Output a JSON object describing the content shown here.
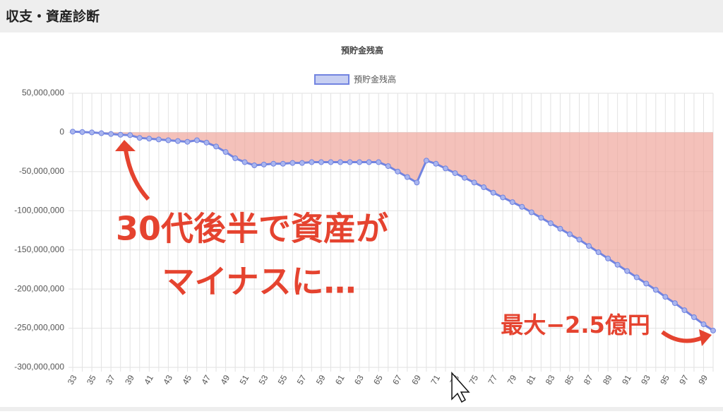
{
  "header": {
    "title": "収支・資産診断"
  },
  "chart_data": {
    "type": "line",
    "title": "預貯金残高",
    "x": [
      33,
      34,
      35,
      36,
      37,
      38,
      39,
      40,
      41,
      42,
      43,
      44,
      45,
      46,
      47,
      48,
      49,
      50,
      51,
      52,
      53,
      54,
      55,
      56,
      57,
      58,
      59,
      60,
      61,
      62,
      63,
      64,
      65,
      66,
      67,
      68,
      69,
      70,
      71,
      72,
      73,
      74,
      75,
      76,
      77,
      78,
      79,
      80,
      81,
      82,
      83,
      84,
      85,
      86,
      87,
      88,
      89,
      90,
      91,
      92,
      93,
      94,
      95,
      96,
      97,
      98,
      99,
      100
    ],
    "series": [
      {
        "name": "預貯金残高",
        "color": "#7284e0",
        "fill": "#f0a79d",
        "values": [
          1000000,
          500000,
          0,
          -1000000,
          -2000000,
          -3000000,
          -3500000,
          -7000000,
          -8000000,
          -9000000,
          -10000000,
          -11000000,
          -12000000,
          -10000000,
          -13000000,
          -18000000,
          -25000000,
          -33000000,
          -38000000,
          -42000000,
          -41000000,
          -40000000,
          -40000000,
          -39000000,
          -39000000,
          -38000000,
          -38000000,
          -38000000,
          -38000000,
          -38000000,
          -38000000,
          -38000000,
          -38000000,
          -43000000,
          -50000000,
          -57000000,
          -64000000,
          -36000000,
          -40000000,
          -46000000,
          -52000000,
          -58000000,
          -64000000,
          -70000000,
          -77000000,
          -83000000,
          -89000000,
          -95000000,
          -102000000,
          -109000000,
          -116000000,
          -123000000,
          -130000000,
          -137000000,
          -145000000,
          -153000000,
          -161000000,
          -169000000,
          -177000000,
          -185000000,
          -193000000,
          -201000000,
          -210000000,
          -218000000,
          -227000000,
          -236000000,
          -245000000,
          -253000000
        ]
      }
    ],
    "xlim": [
      33,
      100
    ],
    "xticks": [
      33,
      35,
      37,
      39,
      41,
      43,
      45,
      47,
      49,
      51,
      53,
      55,
      57,
      59,
      61,
      63,
      65,
      67,
      69,
      71,
      73,
      75,
      77,
      79,
      81,
      83,
      85,
      87,
      89,
      91,
      93,
      95,
      97,
      99
    ],
    "ylim": [
      -300000000,
      50000000
    ],
    "yticks": [
      {
        "value": 50000000,
        "label": "50,000,000"
      },
      0,
      {
        "value": -50000000,
        "label": "-50,000,000"
      },
      {
        "value": -100000000,
        "label": "-100,000,000"
      },
      {
        "value": -150000000,
        "label": "-150,000,000"
      },
      {
        "value": -200000000,
        "label": "-200,000,000"
      },
      {
        "value": -250000000,
        "label": "-250,000,000"
      },
      {
        "value": -300000000,
        "label": "-300,000,000"
      }
    ],
    "grid": true,
    "legend": "top",
    "annotations": [
      "30代後半で資産が",
      "マイナスに…",
      "最大−2.5億円"
    ]
  }
}
